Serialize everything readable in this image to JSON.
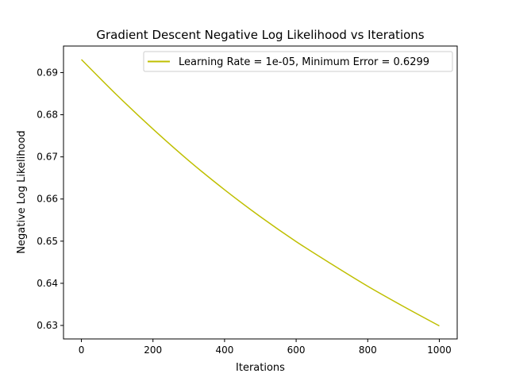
{
  "chart_data": {
    "type": "line",
    "title": "Gradient Descent Negative Log Likelihood vs Iterations",
    "xlabel": "Iterations",
    "ylabel": "Negative Log Likelihood",
    "xlim": [
      -50,
      1050
    ],
    "ylim": [
      0.6268,
      0.6963
    ],
    "xticks": [
      0,
      200,
      400,
      600,
      800,
      1000
    ],
    "xtick_labels": [
      "0",
      "200",
      "400",
      "600",
      "800",
      "1000"
    ],
    "yticks": [
      0.63,
      0.64,
      0.65,
      0.66,
      0.67,
      0.68,
      0.69
    ],
    "ytick_labels": [
      "0.63",
      "0.64",
      "0.65",
      "0.66",
      "0.67",
      "0.68",
      "0.69"
    ],
    "grid": false,
    "legend_position": "top-right",
    "series": [
      {
        "name": "Learning Rate = 1e-05, Minimum Error = 0.6299",
        "color": "#bfbf00",
        "x": [
          0,
          100,
          200,
          300,
          400,
          500,
          600,
          700,
          800,
          900,
          1000
        ],
        "y": [
          0.6931,
          0.6846,
          0.6766,
          0.6691,
          0.6622,
          0.6558,
          0.6499,
          0.6445,
          0.6393,
          0.6345,
          0.6299
        ]
      }
    ]
  }
}
